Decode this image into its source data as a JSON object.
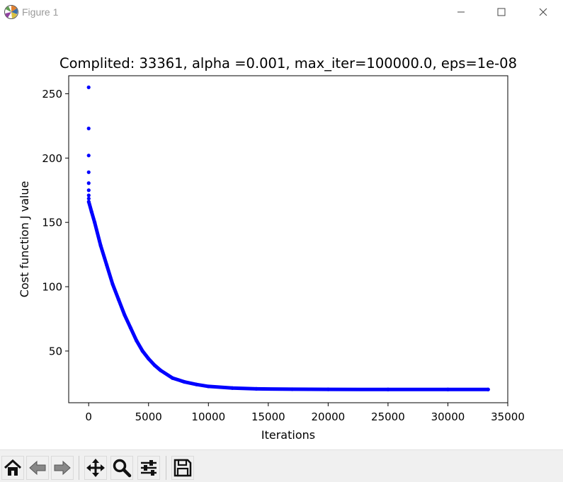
{
  "window": {
    "title": "Figure 1",
    "icon": "matplotlib-logo-icon",
    "controls": [
      "minimize-icon",
      "maximize-icon",
      "close-icon"
    ]
  },
  "chart_data": {
    "type": "scatter",
    "title": "Complited: 33361, alpha =0.001, max_iter=100000.0, eps=1e-08",
    "xlabel": "Iterations",
    "ylabel": "Cost function J value",
    "xlim": [
      -1668,
      35000
    ],
    "ylim": [
      9.8,
      264
    ],
    "xticks": [
      0,
      5000,
      10000,
      15000,
      20000,
      25000,
      30000,
      35000
    ],
    "xtick_labels": [
      "0",
      "5000",
      "10000",
      "15000",
      "20000",
      "25000",
      "30000",
      "35000"
    ],
    "yticks": [
      50,
      100,
      150,
      200,
      250
    ],
    "ytick_labels": [
      "50",
      "100",
      "150",
      "200",
      "250"
    ],
    "color": "#0000ff",
    "grid": false,
    "iterations_completed": 33361,
    "early_points": [
      {
        "x": 0,
        "y": 255
      },
      {
        "x": 1,
        "y": 223
      },
      {
        "x": 2,
        "y": 202
      },
      {
        "x": 3,
        "y": 189
      },
      {
        "x": 4,
        "y": 180.5
      },
      {
        "x": 5,
        "y": 175
      },
      {
        "x": 6,
        "y": 171
      },
      {
        "x": 7,
        "y": 168.5
      }
    ],
    "curve": [
      {
        "x": 8,
        "y": 166
      },
      {
        "x": 250,
        "y": 158
      },
      {
        "x": 500,
        "y": 150
      },
      {
        "x": 1000,
        "y": 132
      },
      {
        "x": 1500,
        "y": 117
      },
      {
        "x": 2000,
        "y": 102
      },
      {
        "x": 2500,
        "y": 90
      },
      {
        "x": 3000,
        "y": 78
      },
      {
        "x": 3500,
        "y": 68
      },
      {
        "x": 4000,
        "y": 58
      },
      {
        "x": 4500,
        "y": 50
      },
      {
        "x": 5000,
        "y": 44
      },
      {
        "x": 5500,
        "y": 39
      },
      {
        "x": 6000,
        "y": 35
      },
      {
        "x": 7000,
        "y": 29
      },
      {
        "x": 8000,
        "y": 26
      },
      {
        "x": 9000,
        "y": 24
      },
      {
        "x": 10000,
        "y": 22.5
      },
      {
        "x": 12000,
        "y": 21.2
      },
      {
        "x": 14000,
        "y": 20.6
      },
      {
        "x": 17000,
        "y": 20.3
      },
      {
        "x": 20000,
        "y": 20.2
      },
      {
        "x": 25000,
        "y": 20.1
      },
      {
        "x": 30000,
        "y": 20.1
      },
      {
        "x": 33361,
        "y": 20.1
      }
    ]
  },
  "toolbar": {
    "buttons": [
      {
        "name": "home-button",
        "icon": "home-icon"
      },
      {
        "name": "back-button",
        "icon": "back-arrow-icon"
      },
      {
        "name": "forward-button",
        "icon": "forward-arrow-icon"
      },
      {
        "name": "pan-button",
        "icon": "move-icon"
      },
      {
        "name": "zoom-button",
        "icon": "zoom-icon"
      },
      {
        "name": "configure-subplots-button",
        "icon": "sliders-icon"
      },
      {
        "name": "save-button",
        "icon": "floppy-disk-icon"
      }
    ]
  }
}
